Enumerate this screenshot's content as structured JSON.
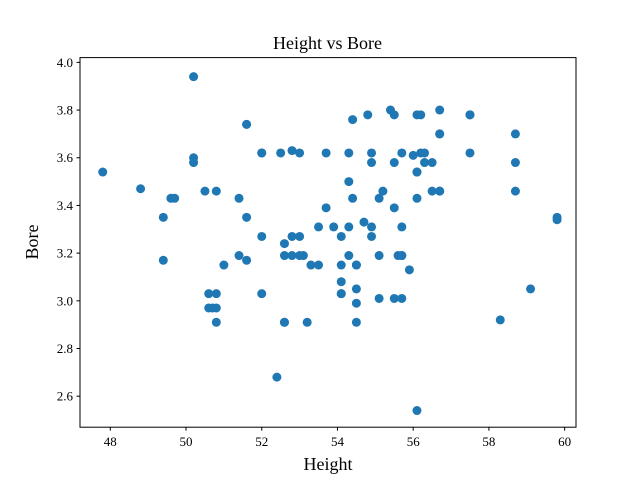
{
  "chart_data": {
    "type": "scatter",
    "title": "Height vs Bore",
    "xlabel": "Height",
    "ylabel": "Bore",
    "xlim": [
      47.2,
      60.3
    ],
    "ylim": [
      2.47,
      4.02
    ],
    "xticks": [
      48,
      50,
      52,
      54,
      56,
      58,
      60
    ],
    "yticks": [
      2.6,
      2.8,
      3.0,
      3.2,
      3.4,
      3.6,
      3.8,
      4.0
    ],
    "grid": false,
    "marker_color": "#1f77b4",
    "x": [
      47.8,
      48.8,
      49.4,
      49.4,
      49.6,
      49.7,
      50.2,
      50.2,
      50.2,
      50.5,
      50.6,
      50.6,
      50.7,
      50.8,
      50.8,
      50.8,
      50.8,
      51.0,
      51.4,
      51.4,
      51.6,
      51.6,
      51.6,
      51.6,
      52.0,
      52.0,
      52.0,
      52.0,
      52.4,
      52.5,
      52.6,
      52.6,
      52.6,
      52.6,
      52.8,
      52.8,
      52.8,
      53.0,
      53.0,
      53.0,
      53.1,
      53.2,
      53.3,
      53.5,
      53.5,
      53.7,
      53.7,
      53.9,
      54.1,
      54.1,
      54.1,
      54.1,
      54.1,
      54.3,
      54.3,
      54.3,
      54.3,
      54.4,
      54.4,
      54.5,
      54.5,
      54.5,
      54.5,
      54.5,
      54.7,
      54.8,
      54.9,
      54.9,
      54.9,
      54.9,
      55.1,
      55.1,
      55.1,
      55.2,
      55.4,
      55.5,
      55.5,
      55.5,
      55.5,
      55.6,
      55.7,
      55.7,
      55.7,
      55.7,
      55.7,
      55.9,
      56.0,
      56.1,
      56.1,
      56.1,
      56.1,
      56.1,
      56.2,
      56.2,
      56.3,
      56.3,
      56.5,
      56.5,
      56.7,
      56.7,
      56.7,
      56.7,
      56.7,
      57.5,
      57.5,
      57.5,
      58.3,
      58.7,
      58.7,
      58.7,
      59.1,
      59.8,
      59.8
    ],
    "y": [
      3.54,
      3.47,
      3.35,
      3.17,
      3.43,
      3.43,
      3.94,
      3.6,
      3.58,
      3.46,
      3.03,
      2.97,
      2.97,
      3.46,
      3.03,
      2.97,
      2.91,
      3.15,
      3.43,
      3.19,
      3.74,
      3.74,
      3.35,
      3.17,
      3.62,
      3.62,
      3.27,
      3.03,
      2.68,
      3.62,
      3.24,
      3.19,
      2.91,
      2.91,
      3.63,
      3.27,
      3.19,
      3.62,
      3.27,
      3.19,
      3.19,
      2.91,
      3.15,
      3.31,
      3.15,
      3.62,
      3.39,
      3.31,
      3.27,
      3.15,
      3.08,
      3.03,
      3.03,
      3.62,
      3.5,
      3.31,
      3.19,
      3.76,
      3.43,
      3.15,
      3.15,
      3.05,
      2.99,
      2.91,
      3.33,
      3.78,
      3.62,
      3.58,
      3.31,
      3.27,
      3.43,
      3.19,
      3.01,
      3.46,
      3.8,
      3.78,
      3.58,
      3.39,
      3.01,
      3.19,
      3.62,
      3.31,
      3.19,
      3.19,
      3.01,
      3.13,
      3.61,
      3.54,
      3.54,
      3.43,
      3.78,
      2.54,
      3.62,
      3.78,
      3.62,
      3.58,
      3.58,
      3.46,
      3.8,
      3.7,
      3.7,
      3.46,
      3.46,
      3.78,
      3.78,
      3.62,
      2.92,
      3.7,
      3.58,
      3.46,
      3.05,
      3.35,
      3.34
    ]
  }
}
